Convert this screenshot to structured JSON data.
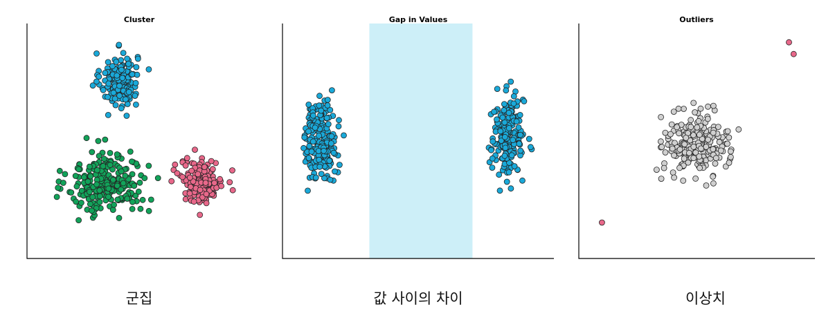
{
  "chart_data": [
    {
      "type": "scatter",
      "title": "Cluster",
      "caption": "군집",
      "xlim": [
        0,
        10
      ],
      "ylim": [
        0,
        10
      ],
      "series": [
        {
          "color": "#1aa9d9",
          "center": [
            4.1,
            7.6
          ],
          "spread": [
            0.75,
            1.05
          ],
          "count": 170
        },
        {
          "color": "#12a35a",
          "center": [
            3.6,
            3.2
          ],
          "spread": [
            1.6,
            1.25
          ],
          "count": 240
        },
        {
          "color": "#e8688a",
          "center": [
            7.8,
            3.3
          ],
          "spread": [
            0.85,
            0.8
          ],
          "count": 190
        }
      ]
    },
    {
      "type": "scatter",
      "title": "Gap in Values",
      "caption": "값 사이의 차이",
      "xlim": [
        0,
        10
      ],
      "ylim": [
        0,
        10
      ],
      "gap_band": [
        3.2,
        7.0
      ],
      "gap_color": "#cdeff8",
      "series": [
        {
          "color": "#1aa9d9",
          "center": [
            1.4,
            5.0
          ],
          "spread": [
            0.55,
            1.55
          ],
          "count": 200
        },
        {
          "color": "#1aa9d9",
          "center": [
            8.3,
            5.2
          ],
          "spread": [
            0.55,
            1.5
          ],
          "count": 200
        }
      ]
    },
    {
      "type": "scatter",
      "title": "Outliers",
      "caption": "이상치",
      "xlim": [
        0,
        10
      ],
      "ylim": [
        0,
        10
      ],
      "series": [
        {
          "color": "#d0d0d0",
          "center": [
            5.0,
            4.9
          ],
          "spread": [
            1.25,
            1.2
          ],
          "count": 220
        },
        {
          "color": "#e8688a",
          "points": [
            [
              0.98,
              1.53
            ],
            [
              8.9,
              9.2
            ],
            [
              9.1,
              8.7
            ]
          ]
        }
      ]
    }
  ]
}
